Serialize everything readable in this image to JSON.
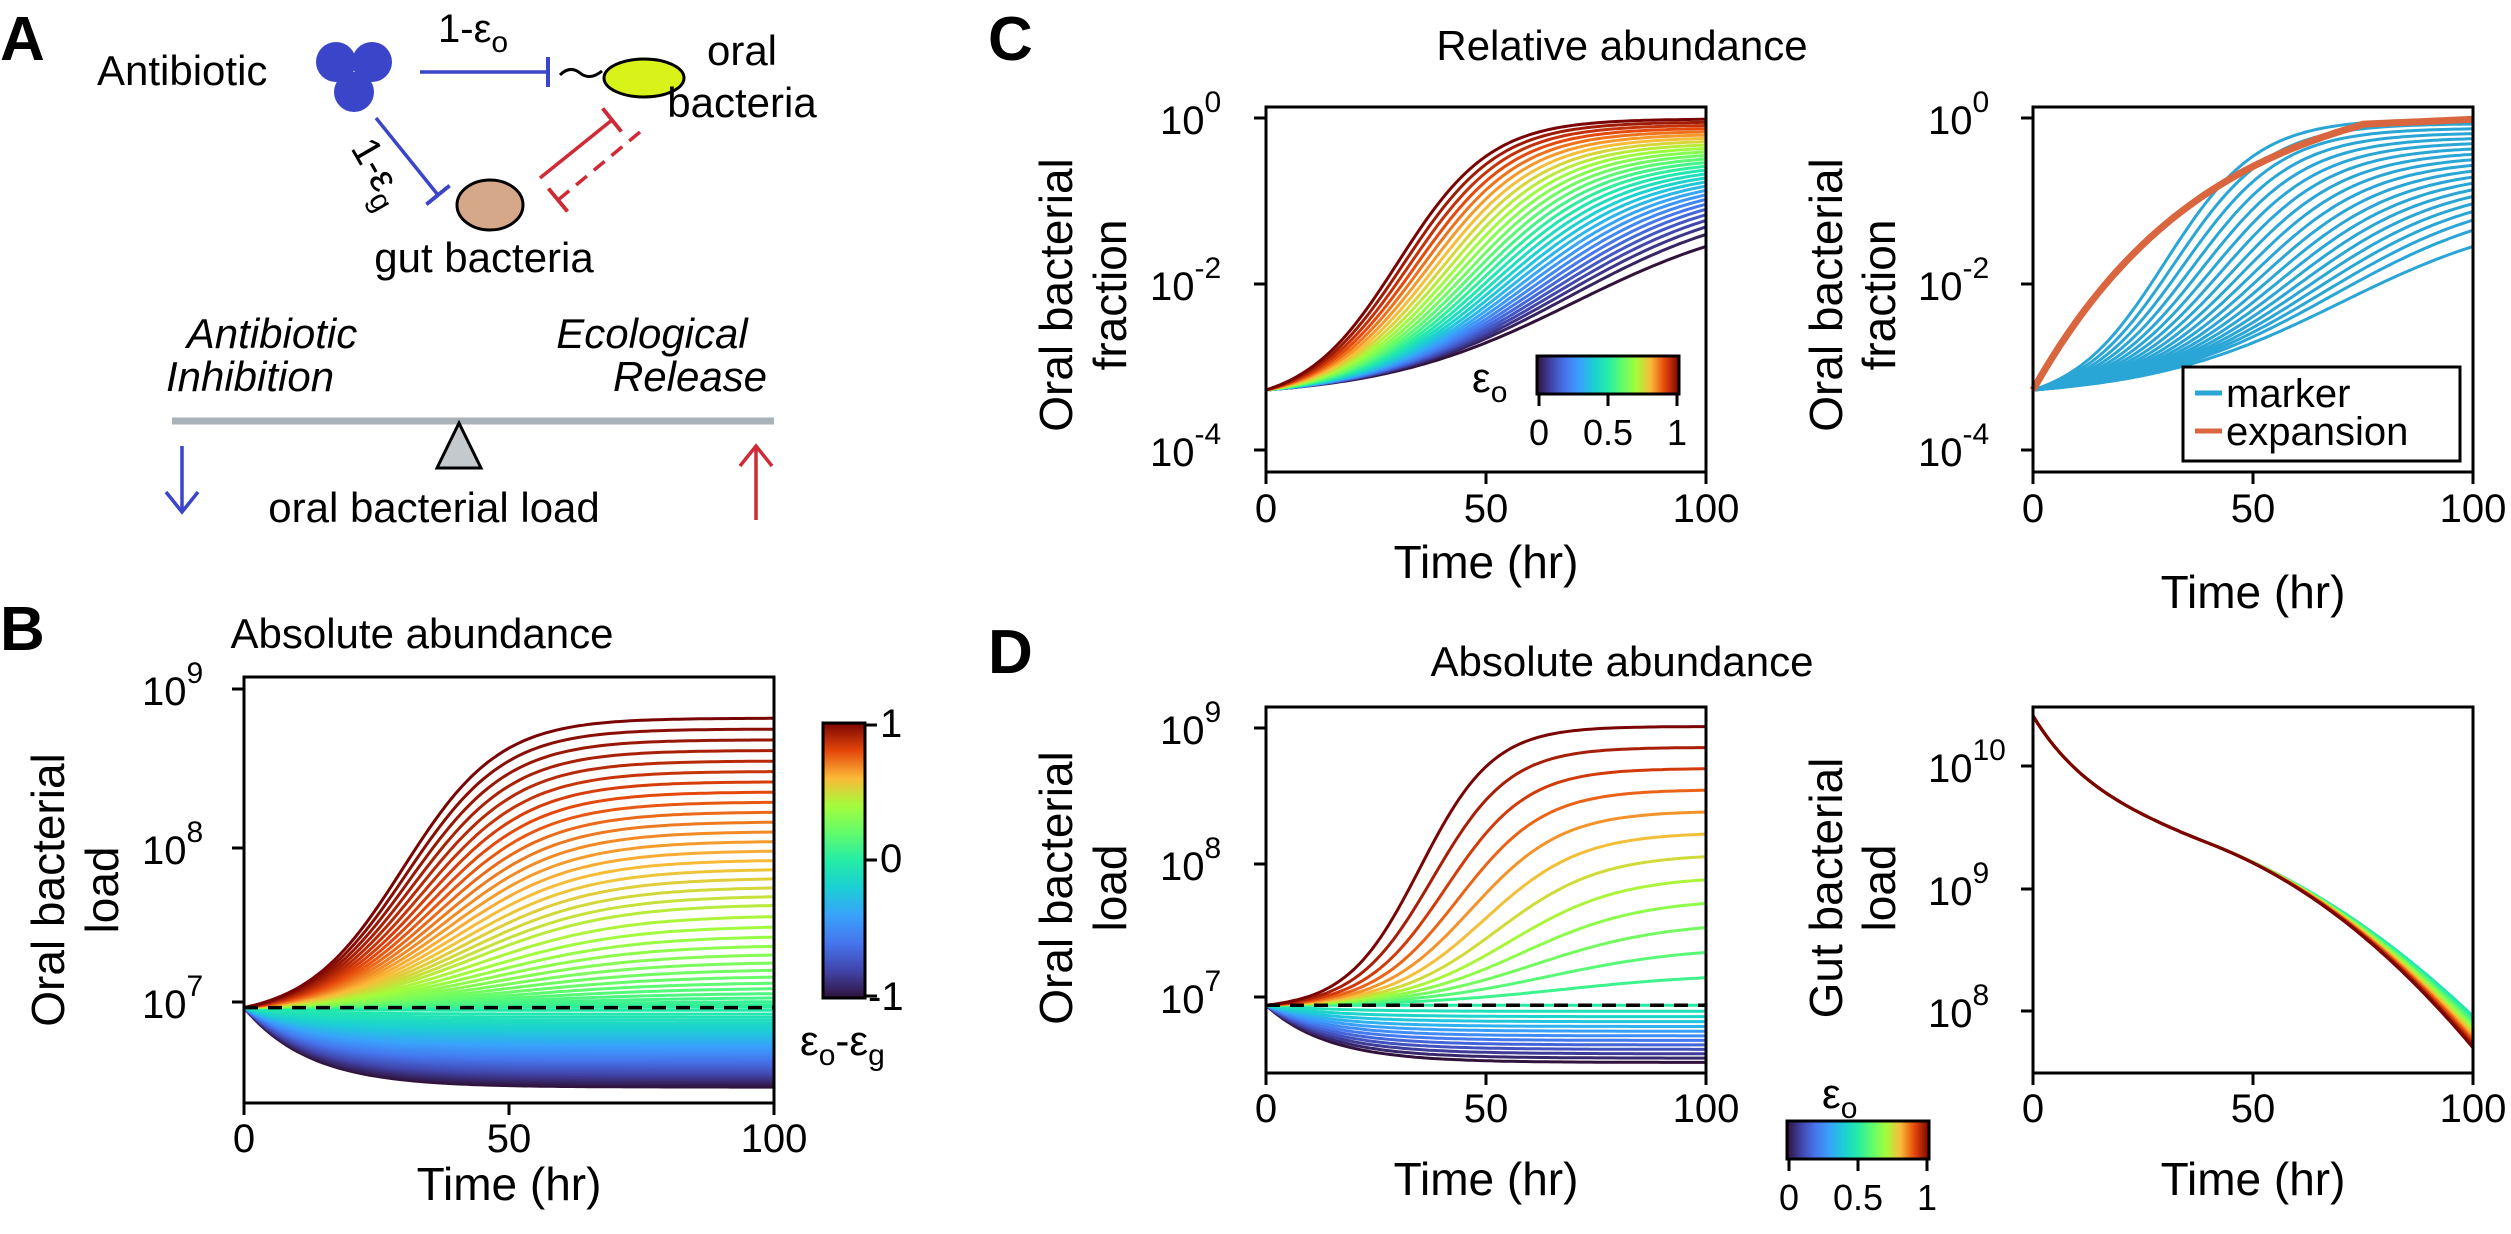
{
  "panel_labels": [
    "A",
    "B",
    "C",
    "D"
  ],
  "schematic": {
    "antibiotic_label": "Antibiotic",
    "oral_label_1": "oral",
    "oral_label_2": "bacteria",
    "gut_label": "gut bacteria",
    "edge_top": "1-ε",
    "edge_top_sub": "o",
    "edge_left": "1-ε",
    "edge_left_sub": "g",
    "left_effect_1": "Antibiotic",
    "left_effect_2": "Inhibition",
    "right_effect_1": "Ecological",
    "right_effect_2": "Release",
    "balance_label": "oral bacterial load",
    "colors": {
      "antibiotic": "#3a45c9",
      "oral": "#d9f21a",
      "gut": "#d6a88a",
      "inhibit": "#3a45c9",
      "release": "#cf2a35"
    }
  },
  "tick_labels": {
    "time": [
      "0",
      "50",
      "100"
    ],
    "load_b": [
      "10",
      "10",
      "10"
    ],
    "load_b_exp": [
      "7",
      "8",
      "9"
    ],
    "frac": [
      "10",
      "10",
      "10"
    ],
    "frac_exp": [
      "-4",
      "-2",
      "0"
    ],
    "gut": [
      "10",
      "10",
      "10"
    ],
    "gut_exp": [
      "8",
      "9",
      "10"
    ],
    "cb_b": [
      "-1",
      "0",
      "1"
    ],
    "cb_eo": [
      "0",
      "0.5",
      "1"
    ]
  },
  "panel_b": {
    "title": "Absolute abundance",
    "xlabel": "Time (hr)",
    "ylabel_1": "Oral bacterial",
    "ylabel_2": "load",
    "colorbar_label": "ε",
    "colorbar_label_sub1": "o",
    "colorbar_label_mid": "-ε",
    "colorbar_label_sub2": "g"
  },
  "panel_c": {
    "title": "Relative abundance",
    "xlabel": "Time (hr)",
    "ylabel_1": "Oral bacterial",
    "ylabel_2": "fraction",
    "colorbar_label": "ε",
    "colorbar_label_sub": "o",
    "legend": [
      {
        "label": "marker",
        "color": "#2aa6d6"
      },
      {
        "label": "expansion",
        "color": "#d9663f"
      }
    ]
  },
  "panel_d": {
    "title": "Absolute abundance",
    "xlabel": "Time (hr)",
    "ylabel_1": "Oral bacterial",
    "ylabel_2": "load",
    "ylabel_gut_1": "Gut bacterial",
    "ylabel_gut_2": "load",
    "colorbar_label": "ε",
    "colorbar_label_sub": "o"
  },
  "chart_data": [
    {
      "id": "B",
      "type": "line",
      "title": "Absolute abundance",
      "xlabel": "Time (hr)",
      "ylabel": "Oral bacterial load",
      "xlim": [
        0,
        100
      ],
      "ylim_log10": [
        6.45,
        9.13
      ],
      "yscale": "log",
      "initial_log10": 7.05,
      "series_count": 70,
      "colorbar": {
        "label": "εo-εg",
        "range": [
          -1,
          1
        ]
      },
      "reference_line": {
        "style": "dashed",
        "y_log10": 7.05
      }
    },
    {
      "id": "C-left",
      "type": "line",
      "title": "Relative abundance",
      "xlabel": "Time (hr)",
      "ylabel": "Oral bacterial fraction",
      "xlim": [
        0,
        100
      ],
      "ylim_log10": [
        -4.3,
        0.15
      ],
      "yscale": "log",
      "initial_log10": -3.3,
      "series_count": 30,
      "colorbar": {
        "label": "εo",
        "range": [
          0,
          1
        ]
      }
    },
    {
      "id": "C-right",
      "type": "line",
      "xlabel": "Time (hr)",
      "ylabel": "Oral bacterial fraction",
      "xlim": [
        0,
        100
      ],
      "ylim_log10": [
        -4.3,
        0.15
      ],
      "yscale": "log",
      "series": [
        {
          "name": "marker",
          "count": 20
        },
        {
          "name": "expansion",
          "count": 1
        }
      ]
    },
    {
      "id": "D-left",
      "type": "line",
      "xlabel": "Time (hr)",
      "ylabel": "Oral bacterial load",
      "xlim": [
        0,
        100
      ],
      "ylim_log10": [
        6.6,
        9.03
      ],
      "yscale": "log",
      "initial_log10": 7.05,
      "series_count": 25,
      "reference_line": {
        "style": "dashed",
        "y_log10": 7.05
      }
    },
    {
      "id": "D-right",
      "type": "line",
      "xlabel": "Time (hr)",
      "ylabel": "Gut bacterial load",
      "xlim": [
        0,
        100
      ],
      "ylim_log10": [
        7.5,
        10.4
      ],
      "yscale": "log",
      "initial_log10": 10.33,
      "series_count": 25,
      "colorbar": {
        "label": "εo",
        "range": [
          0,
          1
        ]
      }
    }
  ]
}
